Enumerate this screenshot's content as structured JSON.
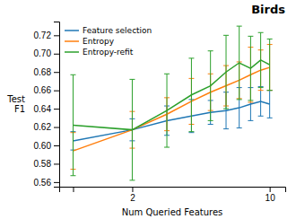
{
  "chart_data": {
    "type": "line",
    "title": "Birds",
    "x_label": "Num Queried Features",
    "y_label": "Test\nF1",
    "x": [
      1,
      2,
      3,
      4,
      5,
      6,
      7,
      8,
      9,
      10
    ],
    "series": [
      {
        "name": "Feature selection",
        "color": "#1f77b4",
        "values": [
          0.605,
          0.617,
          0.627,
          0.632,
          0.636,
          0.638,
          0.641,
          0.645,
          0.648,
          0.645
        ],
        "errors": [
          0.01,
          0.012,
          0.016,
          0.018,
          0.013,
          0.02,
          0.022,
          0.018,
          0.016,
          0.015
        ]
      },
      {
        "name": "Entropy",
        "color": "#ff7f0e",
        "values": [
          0.594,
          0.617,
          0.634,
          0.648,
          0.658,
          0.665,
          0.671,
          0.677,
          0.682,
          0.685
        ],
        "errors": [
          0.02,
          0.02,
          0.018,
          0.025,
          0.02,
          0.022,
          0.02,
          0.03,
          0.022,
          0.025
        ]
      },
      {
        "name": "Entropy-refit",
        "color": "#2ca02c",
        "values": [
          0.622,
          0.617,
          0.638,
          0.655,
          0.665,
          0.68,
          0.69,
          0.684,
          0.693,
          0.688
        ],
        "errors": [
          0.055,
          0.055,
          0.04,
          0.04,
          0.038,
          0.04,
          0.04,
          0.035,
          0.03,
          0.028
        ]
      }
    ],
    "log": "x",
    "xlim": [
      0.85,
      12
    ],
    "xticks": [
      {
        "value": 1,
        "label": null
      },
      2,
      10
    ],
    "ylim": [
      0.555,
      0.735
    ],
    "yticks": [
      0.56,
      0.58,
      {
        "value": 0.6,
        "label": "0.60"
      },
      0.62,
      0.64,
      0.66,
      0.68,
      {
        "value": 0.7,
        "label": "0.70"
      },
      0.72
    ],
    "grid": false,
    "legend": "upper left"
  }
}
